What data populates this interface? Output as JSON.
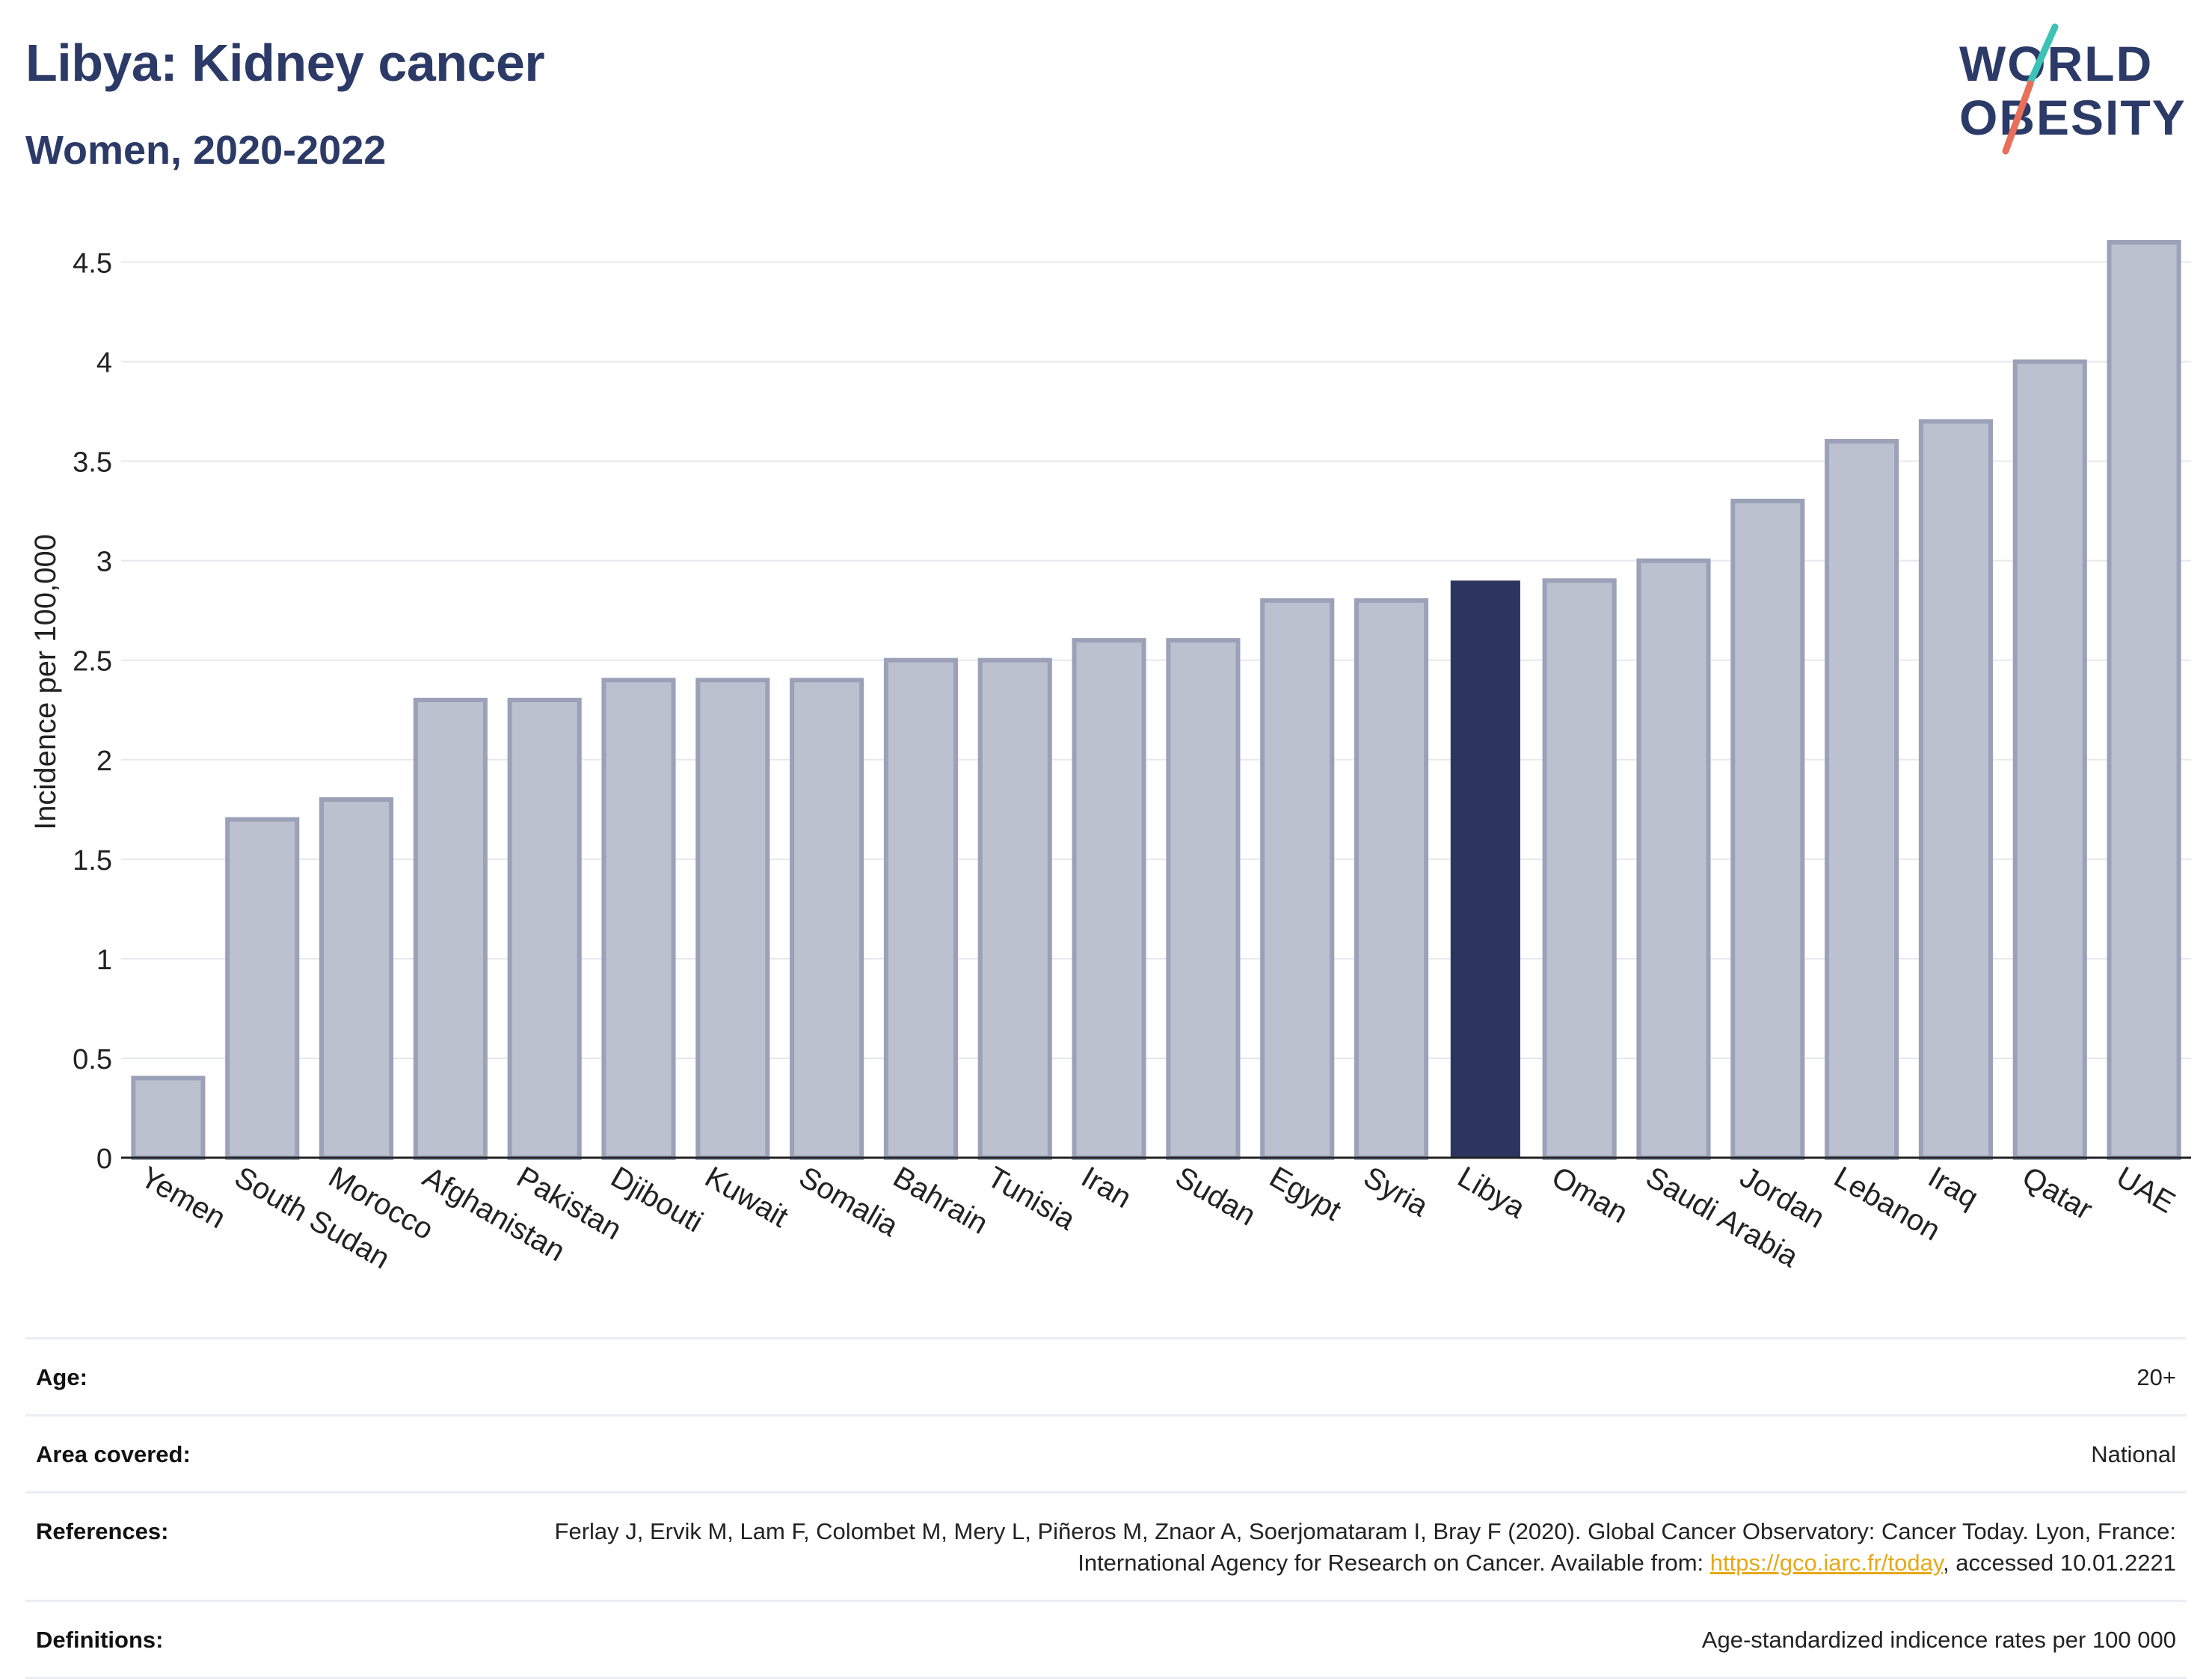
{
  "header": {
    "title": "Libya: Kidney cancer",
    "subtitle": "Women, 2020-2022",
    "logo_line1": "WORLD",
    "logo_line2": "OBESITY"
  },
  "colors": {
    "title": "#2b3a67",
    "highlight_bar": "#2b3560",
    "other_bar_fill": "#bcc1cf",
    "other_bar_stroke": "#9aa1b8",
    "grid": "#e6e8ee",
    "link": "#e6a817",
    "logo_teal": "#3cc3b5",
    "logo_coral": "#e8705a"
  },
  "chart_data": {
    "type": "bar",
    "highlight": "Libya",
    "ylabel": "Incidence per 100,000",
    "xlabel": "",
    "ylim": [
      0,
      4.75
    ],
    "yticks": [
      0,
      0.5,
      1,
      1.5,
      2,
      2.5,
      3,
      3.5,
      4,
      4.5
    ],
    "ytick_labels": [
      "0",
      "0.5",
      "1",
      "1.5",
      "2",
      "2.5",
      "3",
      "3.5",
      "4",
      "4.5"
    ],
    "grid": true,
    "categories": [
      "Yemen",
      "South Sudan",
      "Morocco",
      "Afghanistan",
      "Pakistan",
      "Djibouti",
      "Kuwait",
      "Somalia",
      "Bahrain",
      "Tunisia",
      "Iran",
      "Sudan",
      "Egypt",
      "Syria",
      "Libya",
      "Oman",
      "Saudi Arabia",
      "Jordan",
      "Lebanon",
      "Iraq",
      "Qatar",
      "UAE"
    ],
    "values": [
      0.4,
      1.7,
      1.8,
      2.3,
      2.3,
      2.4,
      2.4,
      2.4,
      2.5,
      2.5,
      2.6,
      2.6,
      2.8,
      2.8,
      2.9,
      2.9,
      3.0,
      3.3,
      3.6,
      3.7,
      4.0,
      4.6
    ]
  },
  "meta": {
    "age_label": "Age:",
    "age_value": "20+",
    "area_label": "Area covered:",
    "area_value": "National",
    "references_label": "References:",
    "references_text": "Ferlay J, Ervik M, Lam F, Colombet M, Mery L, Piñeros M, Znaor A, Soerjomataram I, Bray F (2020). Global Cancer Observatory: Cancer Today. Lyon, France: International Agency for Research on Cancer. Available from: ",
    "references_link": "https://gco.iarc.fr/today",
    "references_suffix": ", accessed 10.01.2221",
    "definitions_label": "Definitions:",
    "definitions_value": "Age-standardized indicence rates per 100 000"
  }
}
